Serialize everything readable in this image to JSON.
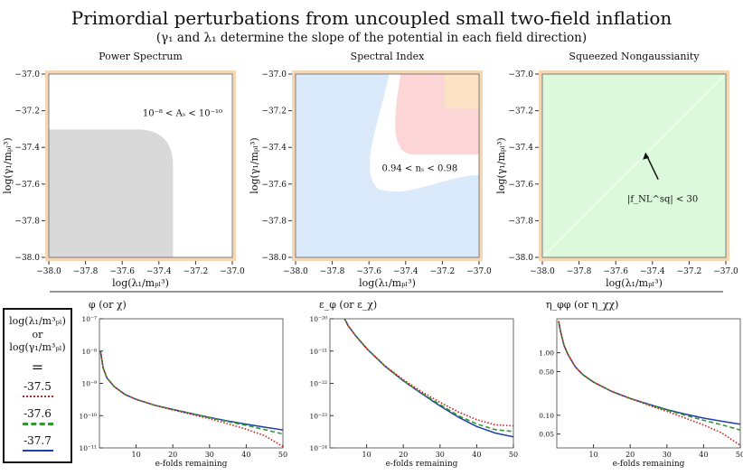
{
  "title": "Primordial perturbations from uncoupled small two-field inflation",
  "subtitle": "(γ₁ and λ₁ determine the slope of the potential in each field direction)",
  "colors": {
    "white": "#ffffff",
    "gray": "#d9d9d9",
    "blue": "#dbeafb",
    "pink": "#fcd6d6",
    "peach": "#fde3c6",
    "green": "#dcf9dc",
    "frame": "#f5d7b5",
    "series_red": "#cc1f1f",
    "series_green": "#2e9a2e",
    "series_blue": "#1f3fa8"
  },
  "legend": {
    "header_top": "log(λ₁/m³ₚₗ)",
    "or": "or",
    "header_bottom": "log(γ₁/m³ₚₗ)",
    "equals": "=",
    "entries": [
      {
        "label": "-37.5",
        "color": "#cc1f1f",
        "style": "dotted"
      },
      {
        "label": "-37.6",
        "color": "#2e9a2e",
        "style": "dashed"
      },
      {
        "label": "-37.7",
        "color": "#1f3fa8",
        "style": "solid"
      }
    ]
  },
  "chart_data": [
    {
      "type": "heatmap",
      "title": "Power Spectrum",
      "xlabel": "log(λ₁/mₚₗ³)",
      "ylabel": "log(γ₁/mₚₗ³)",
      "xlim": [
        -38.0,
        -37.0
      ],
      "ylim": [
        -38.0,
        -37.0
      ],
      "xticks": [
        "−38.0",
        "−37.8",
        "−37.6",
        "−37.4",
        "−37.2",
        "−37.0"
      ],
      "yticks": [
        "−38.0",
        "−37.8",
        "−37.6",
        "−37.4",
        "−37.2",
        "−37.0"
      ],
      "regions": [
        {
          "name": "allowed",
          "color": "white"
        },
        {
          "name": "excluded",
          "color": "gray",
          "boundary_x": -37.33,
          "boundary_y": -37.31
        }
      ],
      "annotation": "10⁻⁸ < Aₛ < 10⁻¹⁰"
    },
    {
      "type": "heatmap",
      "title": "Spectral Index",
      "xlabel": "log(λ₁/mₚₗ³)",
      "ylabel": "log(γ₁/mₚₗ³)",
      "xlim": [
        -38.0,
        -37.0
      ],
      "ylim": [
        -38.0,
        -37.0
      ],
      "xticks": [
        "−38.0",
        "−37.8",
        "−37.6",
        "−37.4",
        "−37.2",
        "−37.0"
      ],
      "yticks": [
        "−38.0",
        "−37.8",
        "−37.6",
        "−37.4",
        "−37.2",
        "−37.0"
      ],
      "regions": [
        {
          "name": "low",
          "color": "blue"
        },
        {
          "name": "allowed",
          "color": "white"
        },
        {
          "name": "high",
          "color": "pink"
        },
        {
          "name": "highest",
          "color": "peach"
        }
      ],
      "annotation": "0.94 < nₛ < 0.98"
    },
    {
      "type": "heatmap",
      "title": "Squeezed Nongaussianity",
      "xlabel": "log(λ₁/mₚₗ³)",
      "ylabel": "log(γ₁/mₚₗ³)",
      "xlim": [
        -38.0,
        -37.0
      ],
      "ylim": [
        -38.0,
        -37.0
      ],
      "xticks": [
        "−38.0",
        "−37.8",
        "−37.6",
        "−37.4",
        "−37.2",
        "−37.0"
      ],
      "yticks": [
        "−38.0",
        "−37.8",
        "−37.6",
        "−37.4",
        "−37.2",
        "−37.0"
      ],
      "regions": [
        {
          "name": "allowed",
          "color": "green"
        }
      ],
      "annotation": "|f_NL^sq| < 30",
      "arrow_to": [
        -37.44,
        -37.43
      ]
    },
    {
      "type": "line",
      "title": "φ (or χ)",
      "xlabel": "e-folds remaining",
      "xlim": [
        0,
        50
      ],
      "yscale": "log",
      "ylim": [
        1e-11,
        1e-07
      ],
      "xticks": [
        "10",
        "20",
        "30",
        "40",
        "50"
      ],
      "yticks": [
        "10⁻¹¹",
        "10⁻¹⁰",
        "10⁻⁹",
        "10⁻⁸",
        "10⁻⁷"
      ],
      "x": [
        0.3,
        1,
        2,
        4,
        7,
        10,
        15,
        20,
        25,
        30,
        35,
        40,
        45,
        50
      ],
      "series": [
        {
          "name": "-37.5",
          "values": [
            1e-08,
            3e-09,
            1.5e-09,
            8e-10,
            4.5e-10,
            3.2e-10,
            2.1e-10,
            1.5e-10,
            1.1e-10,
            8e-11,
            5.6e-11,
            3.8e-11,
            2.4e-11,
            1.1e-11
          ]
        },
        {
          "name": "-37.6",
          "values": [
            1e-08,
            3e-09,
            1.5e-09,
            8e-10,
            4.5e-10,
            3.2e-10,
            2.1e-10,
            1.55e-10,
            1.15e-10,
            8.6e-11,
            6.5e-11,
            5e-11,
            3.7e-11,
            2.7e-11
          ]
        },
        {
          "name": "-37.7",
          "values": [
            1e-08,
            3e-09,
            1.5e-09,
            8e-10,
            4.5e-10,
            3.2e-10,
            2.1e-10,
            1.55e-10,
            1.16e-10,
            8.8e-11,
            6.8e-11,
            5.4e-11,
            4.4e-11,
            3.6e-11
          ]
        }
      ]
    },
    {
      "type": "line",
      "title": "ε_φ (or ε_χ)",
      "xlabel": "e-folds remaining",
      "xlim": [
        0,
        50
      ],
      "yscale": "log",
      "ylim": [
        1e-24,
        1e-20
      ],
      "xticks": [
        "10",
        "20",
        "30",
        "40",
        "50"
      ],
      "yticks": [
        "10⁻²⁴",
        "10⁻²³",
        "10⁻²²",
        "10⁻²¹",
        "10⁻²⁰"
      ],
      "x": [
        4,
        5,
        7,
        10,
        15,
        20,
        25,
        30,
        35,
        40,
        45,
        50
      ],
      "series": [
        {
          "name": "-37.5",
          "values": [
            1e-20,
            6e-21,
            3e-21,
            1.2e-21,
            3.5e-22,
            1.3e-22,
            5.5e-23,
            2.6e-23,
            1.3e-23,
            7.5e-24,
            5.2e-24,
            4.8e-24
          ]
        },
        {
          "name": "-37.6",
          "values": [
            1e-20,
            6e-21,
            3e-21,
            1.2e-21,
            3.4e-22,
            1.2e-22,
            5e-23,
            2.2e-23,
            1e-23,
            5.5e-24,
            3.7e-24,
            3.2e-24
          ]
        },
        {
          "name": "-37.7",
          "values": [
            1e-20,
            6e-21,
            3e-21,
            1.2e-21,
            3.4e-22,
            1.2e-22,
            4.8e-23,
            2e-23,
            9e-24,
            4.6e-24,
            2.9e-24,
            2.2e-24
          ]
        }
      ]
    },
    {
      "type": "line",
      "title": "η_φφ (or η_χχ)",
      "xlabel": "e-folds remaining",
      "xlim": [
        0,
        50
      ],
      "yscale": "log",
      "ylim": [
        0.03,
        3.5
      ],
      "xticks": [
        "10",
        "20",
        "30",
        "40",
        "50"
      ],
      "yticks": [
        "0.05",
        "0.10",
        "0.50",
        "1.00"
      ],
      "x": [
        0.5,
        1,
        2,
        3,
        5,
        7,
        10,
        15,
        20,
        25,
        30,
        35,
        40,
        45,
        50
      ],
      "series": [
        {
          "name": "-37.5",
          "values": [
            3.2,
            2.2,
            1.3,
            0.95,
            0.6,
            0.45,
            0.34,
            0.24,
            0.185,
            0.145,
            0.115,
            0.09,
            0.07,
            0.052,
            0.033
          ]
        },
        {
          "name": "-37.6",
          "values": [
            3.2,
            2.2,
            1.3,
            0.95,
            0.6,
            0.45,
            0.34,
            0.24,
            0.185,
            0.148,
            0.12,
            0.1,
            0.083,
            0.07,
            0.058
          ]
        },
        {
          "name": "-37.7",
          "values": [
            3.2,
            2.2,
            1.3,
            0.95,
            0.6,
            0.45,
            0.34,
            0.24,
            0.186,
            0.15,
            0.123,
            0.104,
            0.09,
            0.08,
            0.072
          ]
        }
      ]
    }
  ]
}
